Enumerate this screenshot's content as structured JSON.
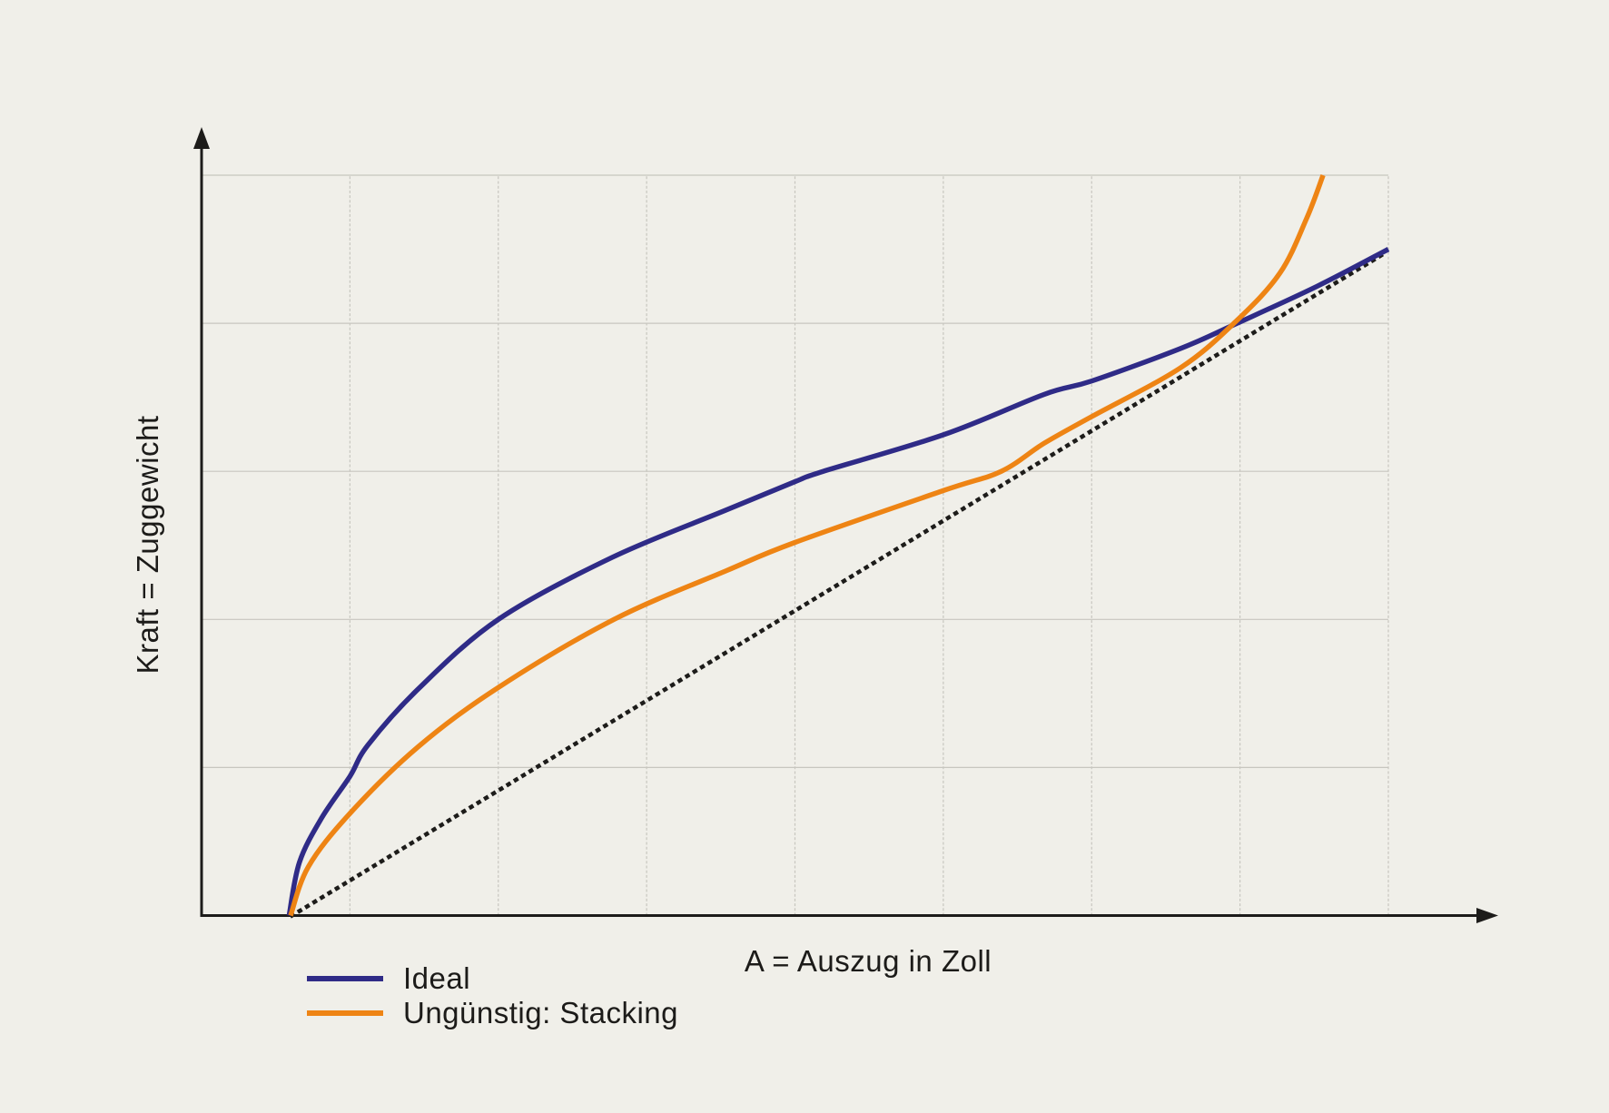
{
  "colors": {
    "background": "#f0efe9",
    "text": "#1c1b19",
    "axis": "#1d1c1a",
    "grid": "#c7c6bf",
    "ideal": "#2f2b87",
    "stacking": "#ee8414"
  },
  "chart_data": {
    "type": "line",
    "title": "",
    "xlabel": "A = Auszug in Zoll",
    "ylabel": "Kraft = Zuggewicht",
    "x_axis": {
      "tick_labels": [],
      "range_grid_units": [
        0,
        8
      ],
      "arrow": true
    },
    "y_axis": {
      "tick_labels": [],
      "range_grid_units": [
        0,
        5
      ],
      "arrow": true
    },
    "grid": "on",
    "grid_cells": {
      "columns": 8,
      "rows": 5
    },
    "legend_position": "bottom-left",
    "series": [
      {
        "id": "ideal",
        "label": "Ideal",
        "color": "#2f2b87",
        "line_style": "solid",
        "points_grid_units": [
          [
            0.59,
            0
          ],
          [
            0.66,
            0.36
          ],
          [
            0.81,
            0.66
          ],
          [
            1.0,
            0.94
          ],
          [
            1.12,
            1.15
          ],
          [
            1.46,
            1.53
          ],
          [
            2.0,
            2.0
          ],
          [
            2.77,
            2.42
          ],
          [
            3.54,
            2.74
          ],
          [
            4.0,
            2.93
          ],
          [
            4.19,
            3.0
          ],
          [
            5.01,
            3.25
          ],
          [
            5.68,
            3.52
          ],
          [
            6.0,
            3.61
          ],
          [
            6.6,
            3.83
          ],
          [
            6.98,
            4.0
          ],
          [
            7.52,
            4.25
          ],
          [
            8.0,
            4.5
          ]
        ]
      },
      {
        "id": "stacking",
        "label": "Ungünstig: Stacking",
        "color": "#ee8414",
        "line_style": "solid",
        "points_grid_units": [
          [
            0.6,
            0
          ],
          [
            0.72,
            0.33
          ],
          [
            1.0,
            0.69
          ],
          [
            1.46,
            1.14
          ],
          [
            2.0,
            1.54
          ],
          [
            2.78,
            2.0
          ],
          [
            3.54,
            2.33
          ],
          [
            4.0,
            2.52
          ],
          [
            5.0,
            2.87
          ],
          [
            5.39,
            3.0
          ],
          [
            5.68,
            3.19
          ],
          [
            6.0,
            3.37
          ],
          [
            6.6,
            3.7
          ],
          [
            6.98,
            4.02
          ],
          [
            7.27,
            4.34
          ],
          [
            7.45,
            4.71
          ],
          [
            7.56,
            5.0
          ]
        ]
      },
      {
        "id": "reference",
        "label": "",
        "color": "#1d1c1a",
        "line_style": "dotted",
        "points_grid_units": [
          [
            0.61,
            0
          ],
          [
            7.97,
            4.47
          ]
        ]
      }
    ]
  },
  "legend": {
    "items": [
      {
        "label": "Ideal",
        "color": "#2f2b87"
      },
      {
        "label": "Ungünstig: Stacking",
        "color": "#ee8414"
      }
    ]
  }
}
